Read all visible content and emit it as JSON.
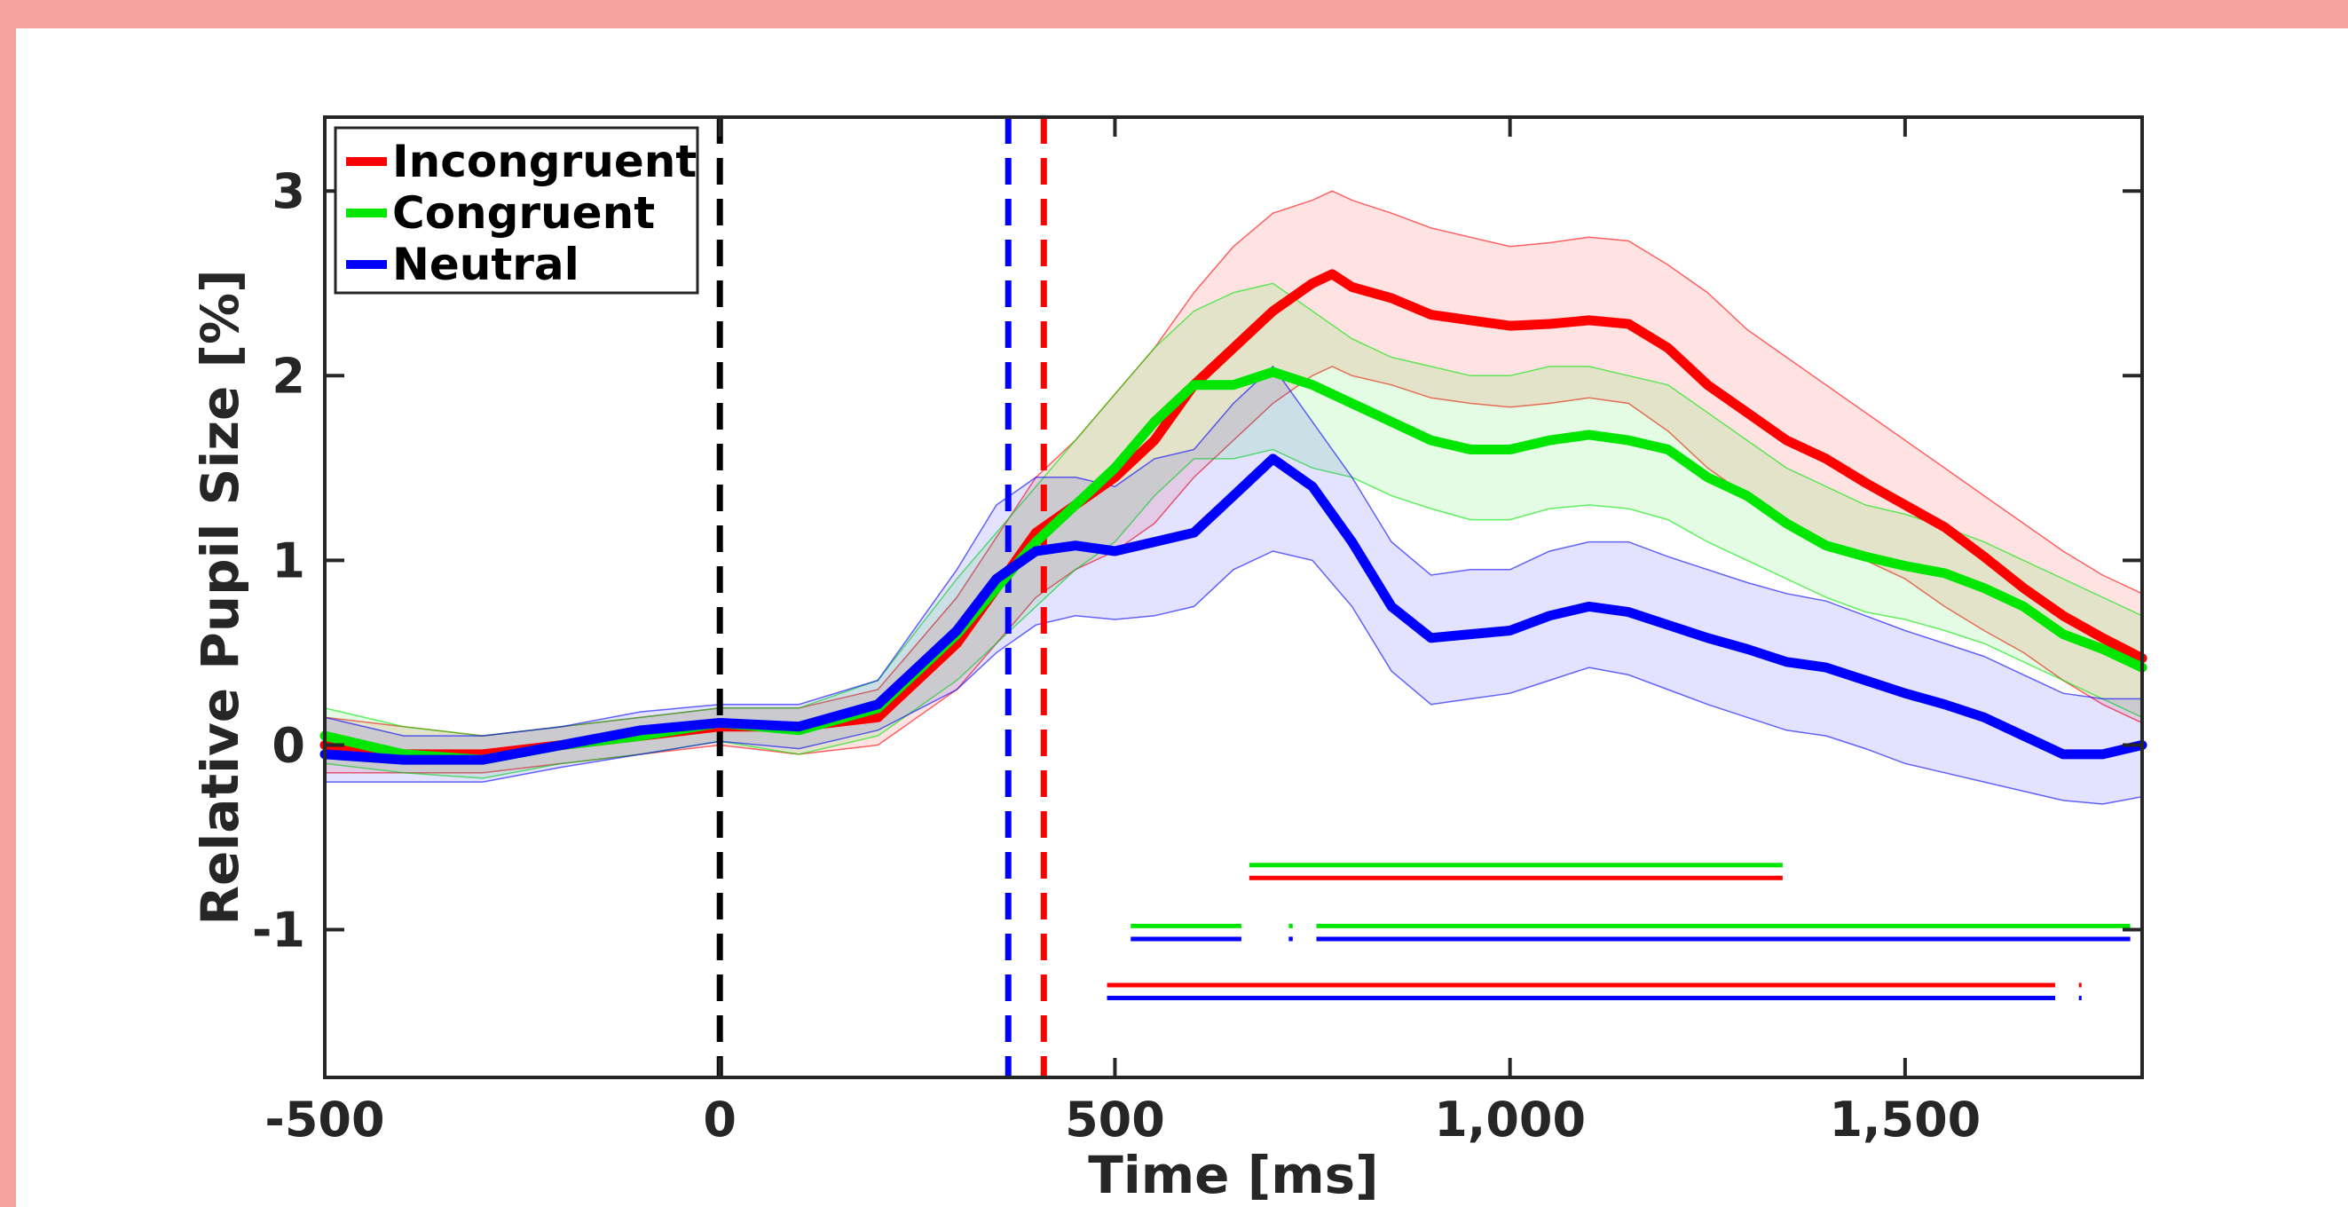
{
  "chart_data": {
    "type": "line",
    "title": "",
    "xlabel": "Time [ms]",
    "ylabel": "Relative Pupil Size [%]",
    "xlim": [
      -500,
      1800
    ],
    "ylim": [
      -1.8,
      3.4
    ],
    "xticks": [
      -500,
      0,
      500,
      1000,
      1500
    ],
    "xtick_labels": [
      "-500",
      "0",
      "500",
      "1,000",
      "1,500"
    ],
    "yticks": [
      -1,
      0,
      1,
      2,
      3
    ],
    "ytick_labels": [
      "-1",
      "0",
      "1",
      "2",
      "3"
    ],
    "grid": false,
    "legend_position": "top-left",
    "colors": {
      "Incongruent": "#ff0000",
      "Congruent": "#00e600",
      "Neutral": "#0000ff",
      "onset": "#000000"
    },
    "series": [
      {
        "name": "Incongruent",
        "color": "#ff0000",
        "x": [
          -500,
          -400,
          -300,
          -200,
          -100,
          0,
          100,
          200,
          300,
          400,
          450,
          500,
          550,
          600,
          650,
          700,
          750,
          775,
          800,
          850,
          900,
          950,
          1000,
          1050,
          1100,
          1150,
          1200,
          1250,
          1300,
          1350,
          1400,
          1450,
          1500,
          1550,
          1600,
          1650,
          1700,
          1750,
          1800
        ],
        "y": [
          0.0,
          -0.05,
          -0.05,
          0.0,
          0.05,
          0.1,
          0.1,
          0.15,
          0.55,
          1.15,
          1.3,
          1.45,
          1.65,
          1.95,
          2.15,
          2.35,
          2.5,
          2.55,
          2.48,
          2.42,
          2.33,
          2.3,
          2.27,
          2.28,
          2.3,
          2.28,
          2.15,
          1.95,
          1.8,
          1.65,
          1.55,
          1.42,
          1.3,
          1.18,
          1.02,
          0.85,
          0.7,
          0.58,
          0.47
        ],
        "upper": [
          0.15,
          0.1,
          0.05,
          0.1,
          0.15,
          0.2,
          0.2,
          0.3,
          0.8,
          1.45,
          1.65,
          1.9,
          2.15,
          2.45,
          2.7,
          2.88,
          2.95,
          3.0,
          2.95,
          2.88,
          2.8,
          2.75,
          2.7,
          2.72,
          2.75,
          2.73,
          2.6,
          2.45,
          2.25,
          2.1,
          1.95,
          1.8,
          1.65,
          1.5,
          1.35,
          1.2,
          1.05,
          0.92,
          0.82
        ],
        "lower": [
          -0.15,
          -0.15,
          -0.15,
          -0.1,
          -0.05,
          0.0,
          -0.05,
          0.0,
          0.3,
          0.8,
          0.95,
          1.05,
          1.2,
          1.45,
          1.65,
          1.85,
          2.0,
          2.05,
          2.0,
          1.95,
          1.88,
          1.85,
          1.83,
          1.85,
          1.88,
          1.85,
          1.7,
          1.5,
          1.35,
          1.2,
          1.1,
          1.0,
          0.9,
          0.75,
          0.62,
          0.5,
          0.35,
          0.22,
          0.12
        ]
      },
      {
        "name": "Congruent",
        "color": "#00e600",
        "x": [
          -500,
          -400,
          -300,
          -200,
          -100,
          0,
          100,
          200,
          300,
          400,
          450,
          500,
          550,
          600,
          650,
          700,
          750,
          800,
          850,
          900,
          950,
          1000,
          1050,
          1100,
          1150,
          1200,
          1250,
          1300,
          1350,
          1400,
          1450,
          1500,
          1550,
          1600,
          1650,
          1700,
          1750,
          1800
        ],
        "y": [
          0.05,
          -0.05,
          -0.08,
          0.0,
          0.05,
          0.12,
          0.08,
          0.2,
          0.6,
          1.1,
          1.3,
          1.5,
          1.75,
          1.95,
          1.95,
          2.02,
          1.95,
          1.85,
          1.75,
          1.65,
          1.6,
          1.6,
          1.65,
          1.68,
          1.65,
          1.6,
          1.45,
          1.35,
          1.2,
          1.08,
          1.02,
          0.97,
          0.93,
          0.85,
          0.75,
          0.6,
          0.52,
          0.42
        ],
        "upper": [
          0.2,
          0.1,
          0.05,
          0.1,
          0.15,
          0.2,
          0.2,
          0.35,
          0.9,
          1.4,
          1.65,
          1.9,
          2.15,
          2.35,
          2.45,
          2.5,
          2.35,
          2.2,
          2.1,
          2.05,
          2.0,
          2.0,
          2.05,
          2.05,
          2.0,
          1.95,
          1.8,
          1.65,
          1.5,
          1.4,
          1.3,
          1.25,
          1.18,
          1.1,
          1.0,
          0.9,
          0.8,
          0.7
        ],
        "lower": [
          -0.1,
          -0.15,
          -0.18,
          -0.1,
          -0.05,
          0.02,
          -0.05,
          0.05,
          0.35,
          0.75,
          0.95,
          1.1,
          1.35,
          1.55,
          1.55,
          1.6,
          1.5,
          1.45,
          1.35,
          1.28,
          1.22,
          1.22,
          1.28,
          1.3,
          1.28,
          1.22,
          1.1,
          1.0,
          0.9,
          0.8,
          0.72,
          0.68,
          0.62,
          0.55,
          0.45,
          0.35,
          0.25,
          0.15
        ]
      },
      {
        "name": "Neutral",
        "color": "#0000ff",
        "x": [
          -500,
          -400,
          -300,
          -200,
          -100,
          0,
          100,
          200,
          300,
          350,
          400,
          450,
          500,
          550,
          600,
          650,
          700,
          750,
          800,
          850,
          900,
          950,
          1000,
          1050,
          1100,
          1150,
          1200,
          1250,
          1300,
          1350,
          1400,
          1450,
          1500,
          1550,
          1600,
          1650,
          1700,
          1750,
          1800
        ],
        "y": [
          -0.05,
          -0.08,
          -0.08,
          0.0,
          0.08,
          0.12,
          0.1,
          0.22,
          0.62,
          0.9,
          1.05,
          1.08,
          1.05,
          1.1,
          1.15,
          1.35,
          1.55,
          1.4,
          1.1,
          0.75,
          0.58,
          0.6,
          0.62,
          0.7,
          0.75,
          0.72,
          0.65,
          0.58,
          0.52,
          0.45,
          0.42,
          0.35,
          0.28,
          0.22,
          0.15,
          0.05,
          -0.05,
          -0.05,
          0.0
        ],
        "upper": [
          0.15,
          0.05,
          0.05,
          0.1,
          0.18,
          0.22,
          0.22,
          0.35,
          0.95,
          1.3,
          1.45,
          1.45,
          1.4,
          1.55,
          1.6,
          1.85,
          2.05,
          1.75,
          1.45,
          1.1,
          0.92,
          0.95,
          0.95,
          1.05,
          1.1,
          1.1,
          1.02,
          0.95,
          0.88,
          0.82,
          0.78,
          0.7,
          0.62,
          0.55,
          0.48,
          0.38,
          0.28,
          0.25,
          0.25
        ],
        "lower": [
          -0.2,
          -0.2,
          -0.2,
          -0.12,
          -0.05,
          0.02,
          -0.02,
          0.08,
          0.3,
          0.5,
          0.65,
          0.7,
          0.68,
          0.7,
          0.75,
          0.95,
          1.05,
          1.0,
          0.75,
          0.4,
          0.22,
          0.25,
          0.28,
          0.35,
          0.42,
          0.38,
          0.3,
          0.22,
          0.15,
          0.08,
          0.05,
          -0.02,
          -0.1,
          -0.15,
          -0.2,
          -0.25,
          -0.3,
          -0.32,
          -0.28
        ]
      }
    ],
    "vertical_lines": [
      {
        "x": 0,
        "color": "#000000",
        "style": "dashed"
      },
      {
        "x": 365,
        "color": "#0000ff",
        "style": "dashed"
      },
      {
        "x": 410,
        "color": "#ff0000",
        "style": "dashed"
      }
    ],
    "significance_bars": [
      {
        "color": "#00e600",
        "y": -0.65,
        "segments": [
          [
            670,
            1345
          ]
        ]
      },
      {
        "color": "#ff0000",
        "y": -0.72,
        "segments": [
          [
            670,
            1345
          ]
        ]
      },
      {
        "color": "#00e600",
        "y": -0.98,
        "segments": [
          [
            520,
            660
          ],
          [
            720,
            725
          ],
          [
            755,
            1785
          ]
        ]
      },
      {
        "color": "#0000ff",
        "y": -1.05,
        "segments": [
          [
            520,
            660
          ],
          [
            720,
            725
          ],
          [
            755,
            1785
          ]
        ]
      },
      {
        "color": "#ff0000",
        "y": -1.3,
        "segments": [
          [
            490,
            1690
          ],
          [
            1720,
            1723
          ]
        ]
      },
      {
        "color": "#0000ff",
        "y": -1.37,
        "segments": [
          [
            490,
            1690
          ],
          [
            1720,
            1723
          ]
        ]
      }
    ]
  }
}
